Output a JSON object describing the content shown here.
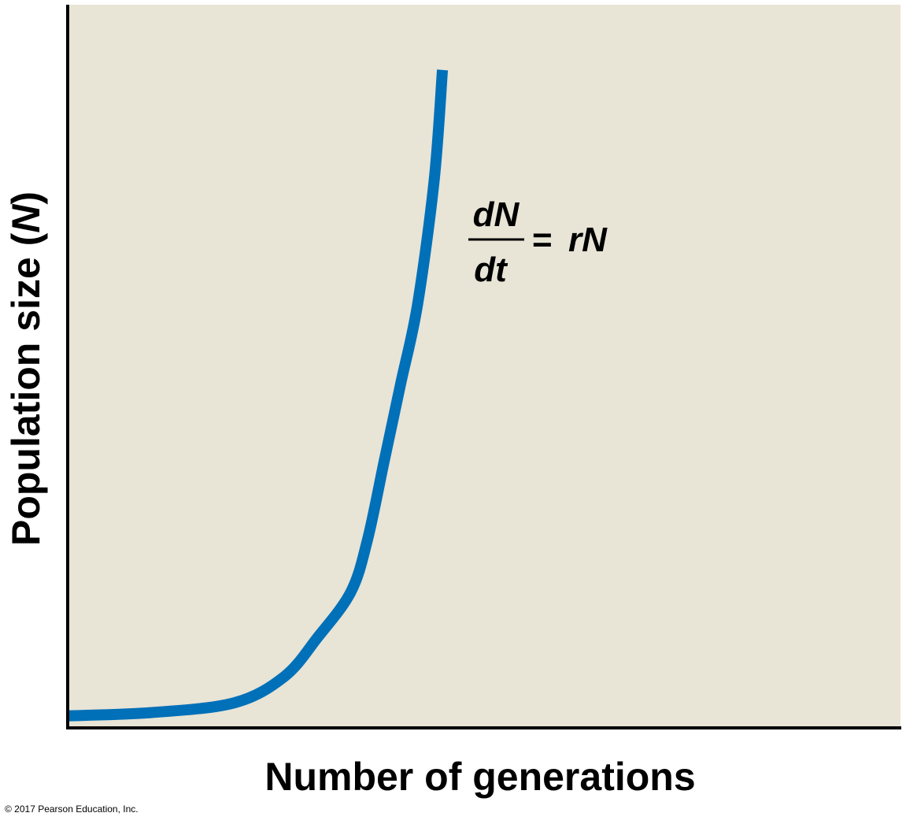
{
  "chart_data": {
    "type": "line",
    "title": "",
    "xlabel": "Number of generations",
    "ylabel_main": "Population size (",
    "ylabel_var": "N",
    "ylabel_close": ")",
    "series": [
      {
        "color": "#0070b8",
        "x": [
          0,
          0.1,
          0.2,
          0.26,
          0.3,
          0.34,
          0.36,
          0.38,
          0.4,
          0.42,
          0.44,
          0.45
        ],
        "y": [
          0.01,
          0.015,
          0.03,
          0.07,
          0.13,
          0.2,
          0.28,
          0.4,
          0.52,
          0.64,
          0.83,
          1.0
        ]
      }
    ],
    "xlim": [
      0,
      1
    ],
    "ylim": [
      0,
      1.1
    ],
    "grid": false,
    "plot_background": "#e8e4d6",
    "equation": {
      "numerator": "dN",
      "denominator": "dt",
      "equals": "=",
      "rhs": "rN"
    }
  },
  "copyright": "© 2017 Pearson Education, Inc."
}
